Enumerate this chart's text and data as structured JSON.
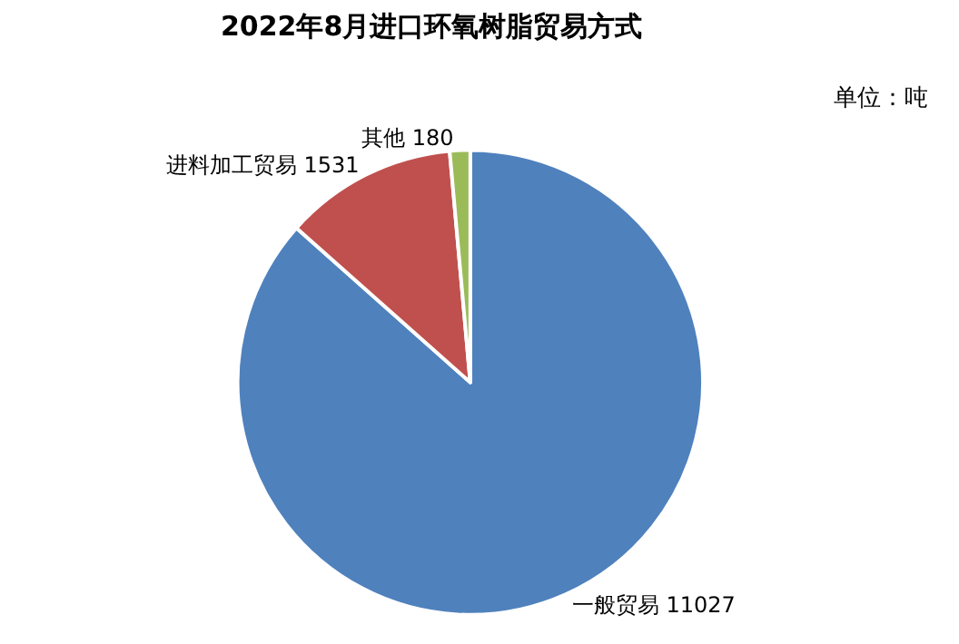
{
  "chart_data": {
    "type": "pie",
    "title": "2022年8月进口环氧树脂贸易方式",
    "categories": [
      "一般贸易 11027",
      "进料加工贸易 1531",
      "其他 180"
    ],
    "values": [
      11027,
      1531,
      180
    ],
    "colors": [
      "#4f81bd",
      "#c0504d",
      "#9bbb59"
    ],
    "legend": false,
    "annotations": [
      "单位：吨"
    ]
  }
}
